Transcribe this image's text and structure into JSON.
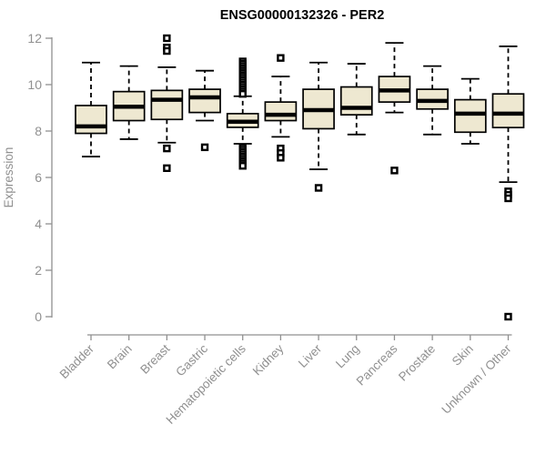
{
  "chart_data": {
    "type": "boxplot",
    "title": "ENSG00000132326 - PER2",
    "xlabel": "",
    "ylabel": "Expression",
    "ylim": [
      0,
      12
    ],
    "yticks": [
      0,
      2,
      4,
      6,
      8,
      10,
      12
    ],
    "grid": false,
    "legend": "none",
    "categories": [
      "Bladder",
      "Brain",
      "Breast",
      "Gastric",
      "Hematopoietic cells",
      "Kidney",
      "Liver",
      "Lung",
      "Pancreas",
      "Prostate",
      "Skin",
      "Unknown / Other"
    ],
    "series": [
      {
        "name": "Bladder",
        "whisker_low": 6.9,
        "q1": 7.9,
        "median": 8.2,
        "q3": 9.1,
        "whisker_high": 10.95,
        "outliers": []
      },
      {
        "name": "Brain",
        "whisker_low": 7.65,
        "q1": 8.45,
        "median": 9.05,
        "q3": 9.7,
        "whisker_high": 10.8,
        "outliers": []
      },
      {
        "name": "Breast",
        "whisker_low": 7.5,
        "q1": 8.5,
        "median": 9.35,
        "q3": 9.75,
        "whisker_high": 10.75,
        "outliers": [
          12.0,
          11.6,
          11.45,
          7.25,
          6.4
        ]
      },
      {
        "name": "Gastric",
        "whisker_low": 8.45,
        "q1": 8.8,
        "median": 9.45,
        "q3": 9.8,
        "whisker_high": 10.6,
        "outliers": [
          7.3
        ]
      },
      {
        "name": "Hematopoietic cells",
        "whisker_low": 7.45,
        "q1": 8.16,
        "median": 8.4,
        "q3": 8.75,
        "whisker_high": 9.5,
        "outliers": [
          11.0,
          10.9,
          10.8,
          10.7,
          10.6,
          10.5,
          10.4,
          10.3,
          10.2,
          10.1,
          10.0,
          9.9,
          9.8,
          9.7,
          9.6,
          7.3,
          7.2,
          7.1,
          7.0,
          6.9,
          6.8,
          6.7,
          6.6,
          6.5
        ]
      },
      {
        "name": "Kidney",
        "whisker_low": 7.75,
        "q1": 8.45,
        "median": 8.7,
        "q3": 9.25,
        "whisker_high": 10.35,
        "outliers": [
          11.15,
          7.25,
          7.05,
          6.85
        ]
      },
      {
        "name": "Liver",
        "whisker_low": 6.35,
        "q1": 8.1,
        "median": 8.9,
        "q3": 9.8,
        "whisker_high": 10.95,
        "outliers": [
          5.55
        ]
      },
      {
        "name": "Lung",
        "whisker_low": 7.85,
        "q1": 8.7,
        "median": 9.0,
        "q3": 9.9,
        "whisker_high": 10.9,
        "outliers": []
      },
      {
        "name": "Pancreas",
        "whisker_low": 8.8,
        "q1": 9.25,
        "median": 9.75,
        "q3": 10.35,
        "whisker_high": 11.8,
        "outliers": [
          6.3
        ]
      },
      {
        "name": "Prostate",
        "whisker_low": 7.85,
        "q1": 8.95,
        "median": 9.3,
        "q3": 9.8,
        "whisker_high": 10.8,
        "outliers": []
      },
      {
        "name": "Skin",
        "whisker_low": 7.45,
        "q1": 7.95,
        "median": 8.75,
        "q3": 9.35,
        "whisker_high": 10.25,
        "outliers": []
      },
      {
        "name": "Unknown / Other",
        "whisker_low": 5.8,
        "q1": 8.15,
        "median": 8.75,
        "q3": 9.6,
        "whisker_high": 11.65,
        "outliers": [
          5.4,
          5.25,
          5.1,
          0
        ]
      }
    ]
  },
  "colors": {
    "background": "#ffffff",
    "axis_gray": "#909090",
    "box_fill": "#EEE8D1",
    "box_stroke": "#000000",
    "title_color": "#000000"
  }
}
